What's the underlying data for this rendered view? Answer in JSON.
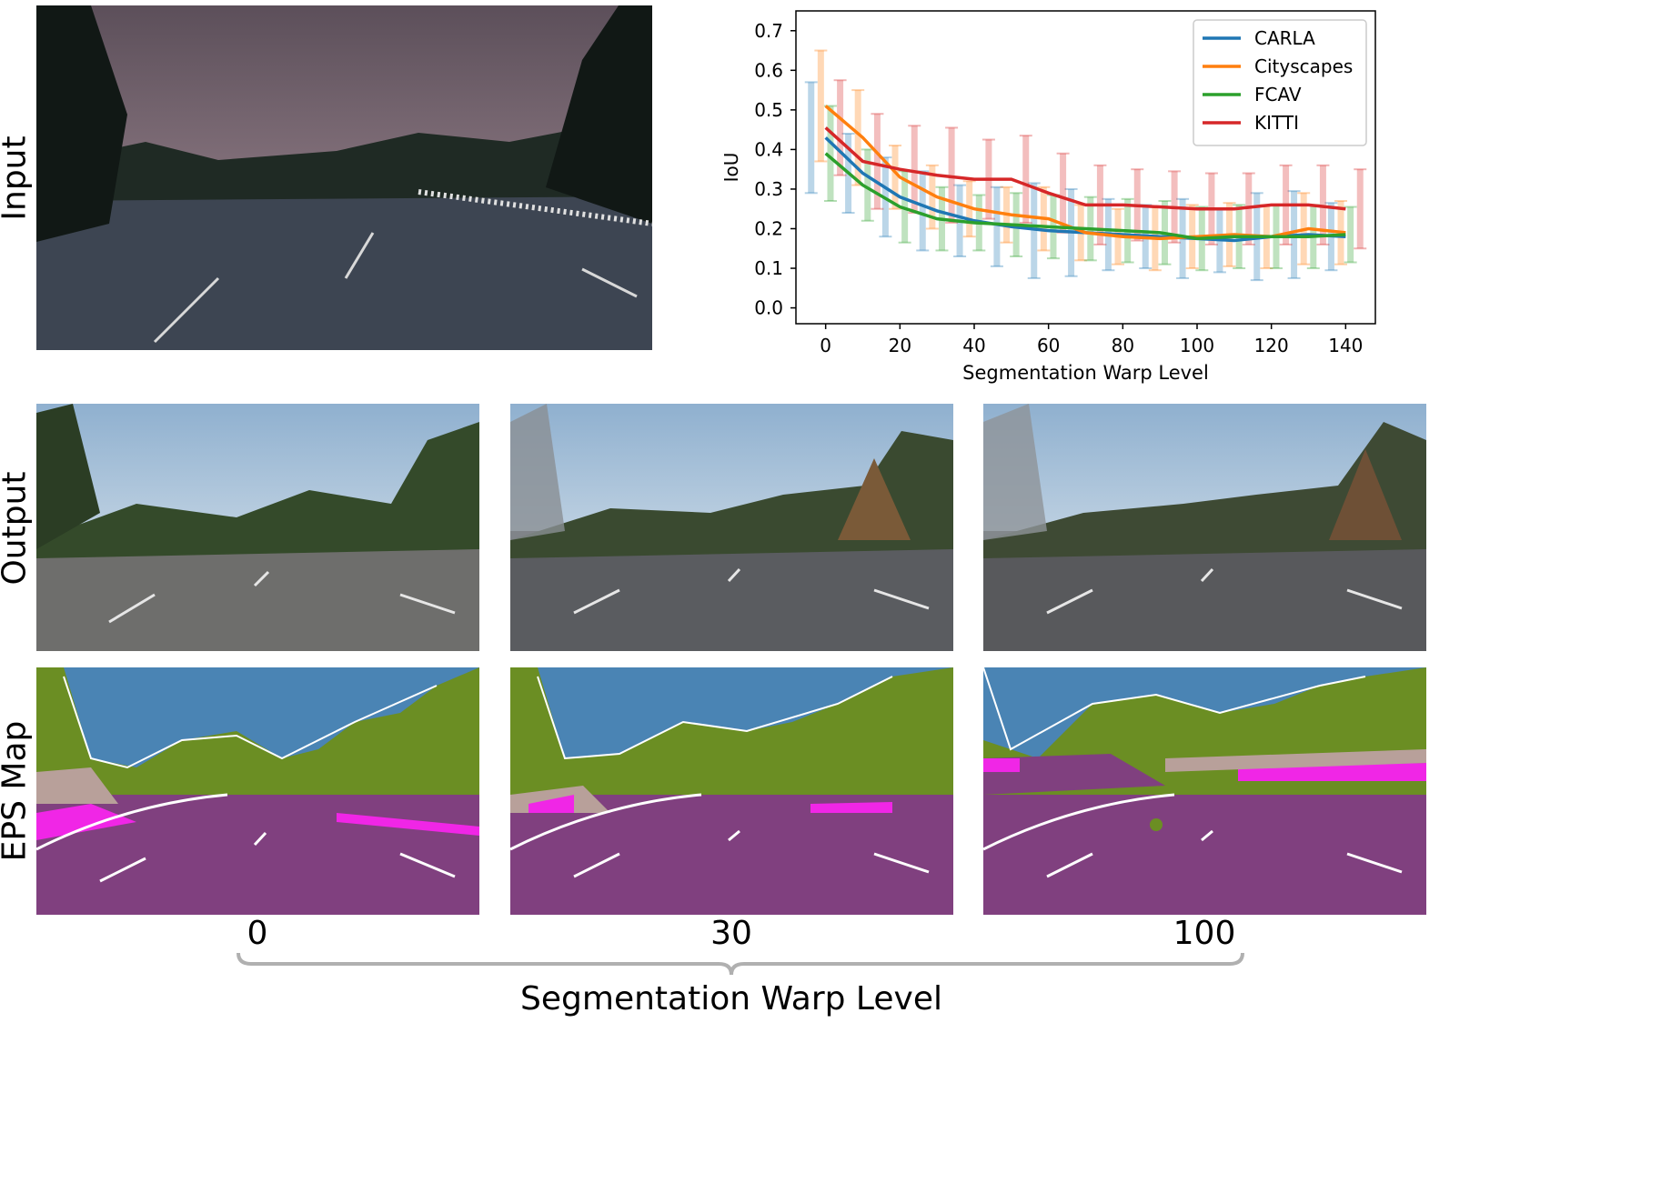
{
  "row_labels": {
    "input": "Input",
    "output": "Output",
    "eps_map": "EPS Map"
  },
  "bottom_axis": {
    "ticks": [
      "0",
      "30",
      "100"
    ],
    "title": "Segmentation Warp Level"
  },
  "colors": {
    "sky": "#4a84b4",
    "vegetation": "#6b8e23",
    "road": "#80407f",
    "sidewalk": "#f026e6",
    "building": "#b8a09a",
    "edges": "#ffffff"
  },
  "chart_data": {
    "type": "line",
    "xlabel": "Segmentation Warp Level",
    "ylabel": "IoU",
    "xlim": [
      -8,
      148
    ],
    "ylim": [
      -0.04,
      0.75
    ],
    "xticks": [
      0,
      20,
      40,
      60,
      80,
      100,
      120,
      140
    ],
    "yticks": [
      0.0,
      0.1,
      0.2,
      0.3,
      0.4,
      0.5,
      0.6,
      0.7
    ],
    "legend_position": "top-right",
    "x": [
      0,
      10,
      20,
      30,
      40,
      50,
      60,
      70,
      80,
      90,
      100,
      110,
      120,
      130,
      140
    ],
    "series": [
      {
        "name": "CARLA",
        "color": "#1f77b4",
        "values": [
          0.43,
          0.34,
          0.28,
          0.245,
          0.22,
          0.205,
          0.195,
          0.19,
          0.185,
          0.18,
          0.175,
          0.17,
          0.18,
          0.185,
          0.18
        ],
        "err": [
          0.14,
          0.1,
          0.1,
          0.1,
          0.09,
          0.1,
          0.12,
          0.11,
          0.09,
          0.08,
          0.1,
          0.08,
          0.11,
          0.11,
          0.085
        ]
      },
      {
        "name": "Cityscapes",
        "color": "#ff7f0e",
        "values": [
          0.51,
          0.43,
          0.33,
          0.28,
          0.25,
          0.235,
          0.225,
          0.19,
          0.18,
          0.175,
          0.18,
          0.185,
          0.18,
          0.2,
          0.19
        ],
        "err": [
          0.14,
          0.12,
          0.08,
          0.08,
          0.07,
          0.07,
          0.08,
          0.07,
          0.07,
          0.08,
          0.08,
          0.08,
          0.08,
          0.09,
          0.08
        ]
      },
      {
        "name": "FCAV",
        "color": "#2ca02c",
        "values": [
          0.39,
          0.31,
          0.255,
          0.225,
          0.215,
          0.21,
          0.205,
          0.2,
          0.195,
          0.19,
          0.175,
          0.18,
          0.18,
          0.18,
          0.185
        ],
        "err": [
          0.12,
          0.09,
          0.09,
          0.08,
          0.07,
          0.08,
          0.08,
          0.08,
          0.08,
          0.08,
          0.08,
          0.08,
          0.08,
          0.08,
          0.07
        ]
      },
      {
        "name": "KITTI",
        "color": "#d62728",
        "values": [
          0.455,
          0.37,
          0.35,
          0.335,
          0.325,
          0.325,
          0.29,
          0.26,
          0.26,
          0.255,
          0.25,
          0.25,
          0.26,
          0.26,
          0.25
        ],
        "err": [
          0.12,
          0.12,
          0.11,
          0.12,
          0.1,
          0.11,
          0.1,
          0.1,
          0.09,
          0.09,
          0.09,
          0.09,
          0.1,
          0.1,
          0.1
        ]
      }
    ]
  }
}
